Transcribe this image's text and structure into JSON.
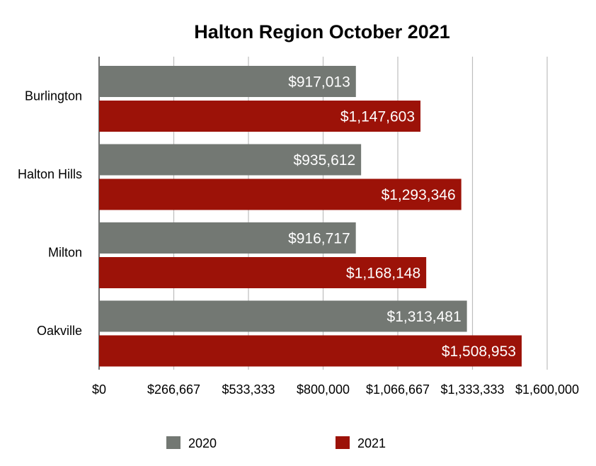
{
  "chart_data": {
    "type": "bar",
    "orientation": "horizontal",
    "title": "Halton Region October 2021",
    "xlabel": "",
    "ylabel": "",
    "categories": [
      "Burlington",
      "Halton Hills",
      "Milton",
      "Oakville"
    ],
    "series": [
      {
        "name": "2020",
        "color": "#737873",
        "values": [
          917013,
          935612,
          916717,
          1313481
        ],
        "labels": [
          "$917,013",
          "$935,612",
          "$916,717",
          "$1,313,481"
        ]
      },
      {
        "name": "2021",
        "color": "#9c1208",
        "values": [
          1147603,
          1293346,
          1168148,
          1508953
        ],
        "labels": [
          "$1,147,603",
          "$1,293,346",
          "$1,168,148",
          "$1,508,953"
        ]
      }
    ],
    "xlim": [
      0,
      1600000
    ],
    "xticks": [
      0,
      266667,
      533333,
      800000,
      1066667,
      1333333,
      1600000
    ],
    "xtick_labels": [
      "$0",
      "$266,667",
      "$533,333",
      "$800,000",
      "$1,066,667",
      "$1,333,333",
      "$1,600,000"
    ],
    "grid": true,
    "legend_position": "bottom"
  }
}
